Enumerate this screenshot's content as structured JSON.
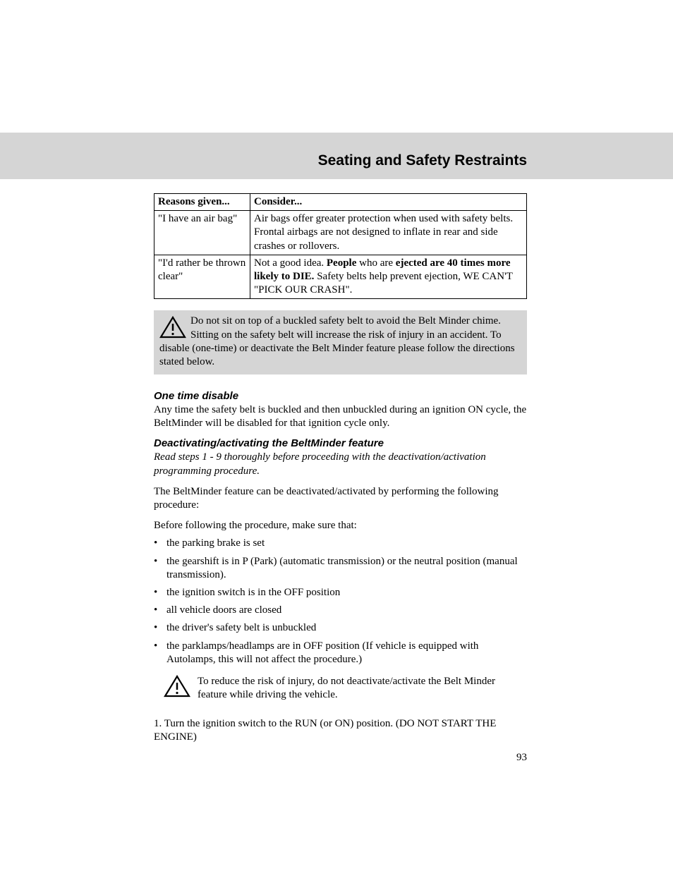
{
  "title": "Seating and Safety Restraints",
  "table": {
    "headers": [
      "Reasons given...",
      "Consider..."
    ],
    "rows": [
      {
        "reason": "\"I have an air bag\"",
        "consider_html": "Air bags offer greater protection when used with safety belts. Frontal airbags are not designed to inflate in rear and side crashes or rollovers."
      },
      {
        "reason": "\"I'd rather be thrown clear\"",
        "consider_html": "Not a good idea. <span class=\"b\">People</span> who are <span class=\"b\">ejected are 40 times more likely to DIE.</span> Safety belts help prevent ejection, WE CAN'T \"PICK OUR CRASH\"."
      }
    ]
  },
  "warning1": "Do not sit on top of a buckled safety belt to avoid the Belt Minder chime. Sitting on the safety belt will increase the risk of injury in an accident. To disable (one-time) or deactivate the Belt Minder feature please follow the directions stated below.",
  "section1": {
    "heading": "One time disable",
    "body": "Any time the safety belt is buckled and then unbuckled during an ignition ON cycle, the BeltMinder will be disabled for that ignition cycle only."
  },
  "section2": {
    "heading": "Deactivating/activating the BeltMinder feature",
    "instructions_ital": "Read steps 1 - 9 thoroughly before proceeding with the deactivation/activation programming procedure.",
    "intro": "The BeltMinder feature can be deactivated/activated by performing the following procedure:",
    "before": "Before following the procedure, make sure that:",
    "bullets": [
      "the parking brake is set",
      "the gearshift is in P (Park) (automatic transmission) or the neutral position (manual transmission).",
      "the ignition switch is in the OFF position",
      "all vehicle doors are closed",
      "the driver's safety belt is unbuckled",
      "the parklamps/headlamps are in OFF position (If vehicle is equipped with Autolamps, this will not affect the procedure.)"
    ]
  },
  "warning2": "To reduce the risk of injury, do not deactivate/activate the Belt Minder feature while driving the vehicle.",
  "step1": "1. Turn the ignition switch to the RUN (or ON) position. (DO NOT START THE ENGINE)",
  "page_number": "93",
  "colors": {
    "banner_bg": "#d5d5d5",
    "text": "#000000",
    "page_bg": "#ffffff",
    "icon_stroke": "#000000"
  }
}
